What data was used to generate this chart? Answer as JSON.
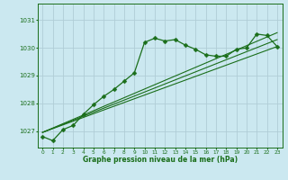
{
  "title": "Graphe pression niveau de la mer (hPa)",
  "background_color": "#cbe8f0",
  "grid_color": "#b0cdd6",
  "line_color": "#1a6e1a",
  "xlim": [
    -0.5,
    23.5
  ],
  "ylim": [
    1026.4,
    1031.6
  ],
  "yticks": [
    1027,
    1028,
    1029,
    1030,
    1031
  ],
  "xticks": [
    0,
    1,
    2,
    3,
    4,
    5,
    6,
    7,
    8,
    9,
    10,
    11,
    12,
    13,
    14,
    15,
    16,
    17,
    18,
    19,
    20,
    21,
    22,
    23
  ],
  "series": [
    {
      "x": [
        0,
        1,
        2,
        3,
        4,
        5,
        6,
        7,
        8,
        9,
        10,
        11,
        12,
        13,
        14,
        15,
        16,
        17,
        18,
        19,
        20,
        21,
        22,
        23
      ],
      "y": [
        1026.8,
        1026.65,
        1027.05,
        1027.2,
        1027.6,
        1027.95,
        1028.25,
        1028.5,
        1028.8,
        1029.1,
        1030.2,
        1030.35,
        1030.25,
        1030.3,
        1030.1,
        1029.95,
        1029.75,
        1029.7,
        1029.7,
        1029.95,
        1030.0,
        1030.5,
        1030.45,
        1030.05
      ],
      "marker": "D",
      "markersize": 2.5,
      "linewidth": 0.9
    },
    {
      "x": [
        0,
        23
      ],
      "y": [
        1026.95,
        1030.05
      ],
      "marker": null,
      "linewidth": 0.8
    },
    {
      "x": [
        0,
        23
      ],
      "y": [
        1026.95,
        1030.3
      ],
      "marker": null,
      "linewidth": 0.8
    },
    {
      "x": [
        0,
        23
      ],
      "y": [
        1026.95,
        1030.55
      ],
      "marker": null,
      "linewidth": 0.8
    }
  ],
  "xlabel_fontsize": 5.5,
  "xlabel_fontweight": "bold",
  "ytick_fontsize": 5.0,
  "xtick_fontsize": 4.2
}
